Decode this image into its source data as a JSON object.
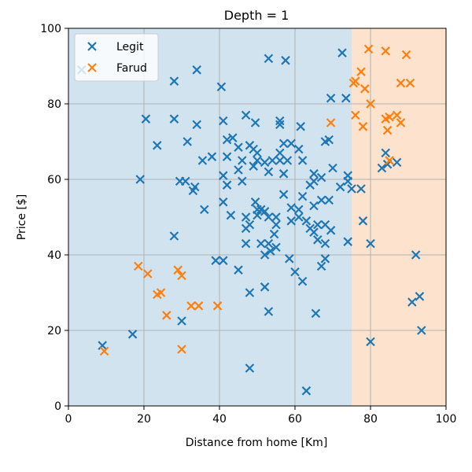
{
  "chart_data": {
    "type": "scatter",
    "title": "Depth = 1",
    "xlabel": "Distance from home [Km]",
    "ylabel": "Price [$]",
    "xlim": [
      0,
      100
    ],
    "ylim": [
      0,
      100
    ],
    "xticks": [
      0,
      20,
      40,
      60,
      80,
      100
    ],
    "yticks": [
      0,
      20,
      40,
      60,
      80,
      100
    ],
    "grid": true,
    "legend_position": "top-left",
    "marker": "x",
    "regions": [
      {
        "x_range": [
          0,
          75
        ],
        "color": "#d2e3f0"
      },
      {
        "x_range": [
          75,
          100
        ],
        "color": "#fde3cd"
      }
    ],
    "series": [
      {
        "name": "Legit",
        "color": "#1f77b4",
        "points": [
          [
            3.5,
            89
          ],
          [
            20.5,
            76
          ],
          [
            28,
            86
          ],
          [
            28,
            76
          ],
          [
            34,
            89
          ],
          [
            40.5,
            84.5
          ],
          [
            53,
            92
          ],
          [
            57.5,
            91.5
          ],
          [
            72.5,
            93.5
          ],
          [
            73.5,
            81.5
          ],
          [
            69.5,
            81.5
          ],
          [
            47,
            77
          ],
          [
            41,
            75.5
          ],
          [
            49.5,
            75
          ],
          [
            56,
            75.5
          ],
          [
            56,
            74.5
          ],
          [
            61.5,
            74
          ],
          [
            34,
            74.5
          ],
          [
            23.5,
            69
          ],
          [
            31.5,
            70
          ],
          [
            42,
            70.5
          ],
          [
            43.5,
            71
          ],
          [
            45,
            68.5
          ],
          [
            48,
            69
          ],
          [
            49,
            68
          ],
          [
            50,
            67
          ],
          [
            56,
            67
          ],
          [
            57,
            69.5
          ],
          [
            59,
            69.5
          ],
          [
            61,
            68
          ],
          [
            68,
            70
          ],
          [
            69,
            70.5
          ],
          [
            38,
            66
          ],
          [
            35.5,
            65
          ],
          [
            42,
            66
          ],
          [
            46,
            65
          ],
          [
            50,
            65
          ],
          [
            52,
            64.5
          ],
          [
            54,
            65
          ],
          [
            56,
            65
          ],
          [
            58,
            65
          ],
          [
            62,
            65
          ],
          [
            45,
            62.5
          ],
          [
            49,
            63.5
          ],
          [
            53,
            62
          ],
          [
            57,
            61.5
          ],
          [
            65,
            61.5
          ],
          [
            67,
            60.5
          ],
          [
            70,
            63
          ],
          [
            19,
            60
          ],
          [
            29.5,
            59.5
          ],
          [
            31,
            59.5
          ],
          [
            33.5,
            58
          ],
          [
            33,
            57
          ],
          [
            41,
            61
          ],
          [
            42,
            58.5
          ],
          [
            46,
            59.5
          ],
          [
            62,
            55.5
          ],
          [
            64,
            58.5
          ],
          [
            65,
            59.5
          ],
          [
            72,
            58
          ],
          [
            74,
            61
          ],
          [
            74,
            59.5
          ],
          [
            75,
            57.5
          ],
          [
            36,
            52
          ],
          [
            41,
            54
          ],
          [
            43,
            50.5
          ],
          [
            47,
            50
          ],
          [
            48,
            48
          ],
          [
            49.5,
            54
          ],
          [
            50,
            52
          ],
          [
            50,
            50.5
          ],
          [
            51,
            52
          ],
          [
            52,
            51.5
          ],
          [
            53,
            50
          ],
          [
            55,
            50
          ],
          [
            57,
            56
          ],
          [
            59,
            52.5
          ],
          [
            61,
            52
          ],
          [
            61,
            50
          ],
          [
            63,
            49
          ],
          [
            64,
            47
          ],
          [
            65,
            53
          ],
          [
            66,
            48
          ],
          [
            67,
            54.5
          ],
          [
            69,
            54.5
          ],
          [
            68,
            48
          ],
          [
            28,
            45
          ],
          [
            47,
            47
          ],
          [
            51,
            43
          ],
          [
            53,
            43
          ],
          [
            54.5,
            45.5
          ],
          [
            55,
            48
          ],
          [
            59,
            49
          ],
          [
            65,
            46
          ],
          [
            66,
            44
          ],
          [
            69.5,
            46.5
          ],
          [
            47,
            43
          ],
          [
            52,
            40
          ],
          [
            53.5,
            41
          ],
          [
            55,
            42
          ],
          [
            68,
            43
          ],
          [
            74,
            43.5
          ],
          [
            39,
            38.5
          ],
          [
            41,
            38.5
          ],
          [
            45,
            36
          ],
          [
            58.5,
            39
          ],
          [
            60,
            35.5
          ],
          [
            62,
            33
          ],
          [
            67,
            37
          ],
          [
            68,
            39
          ],
          [
            48,
            30
          ],
          [
            52,
            31.5
          ],
          [
            30,
            22.5
          ],
          [
            17,
            19
          ],
          [
            9,
            16
          ],
          [
            53,
            25
          ],
          [
            65.5,
            24.5
          ],
          [
            48,
            10
          ],
          [
            63,
            4
          ],
          [
            77.5,
            57.5
          ],
          [
            83,
            63
          ],
          [
            84,
            67
          ],
          [
            84.5,
            64
          ],
          [
            87,
            64.5
          ],
          [
            78,
            49
          ],
          [
            80,
            43
          ],
          [
            92,
            40
          ],
          [
            91,
            27.5
          ],
          [
            93,
            29
          ],
          [
            93.5,
            20
          ],
          [
            80,
            17
          ]
        ]
      },
      {
        "name": "Farud",
        "color": "#ff7f0e",
        "points": [
          [
            79.5,
            94.5
          ],
          [
            84,
            94
          ],
          [
            89.5,
            93
          ],
          [
            77.5,
            88.5
          ],
          [
            76,
            86
          ],
          [
            75.5,
            85.5
          ],
          [
            88,
            85.5
          ],
          [
            90.5,
            85.5
          ],
          [
            78.5,
            84
          ],
          [
            80,
            80
          ],
          [
            76,
            77
          ],
          [
            84,
            76
          ],
          [
            85,
            76.5
          ],
          [
            87,
            77
          ],
          [
            88,
            75
          ],
          [
            78,
            74
          ],
          [
            84.5,
            73
          ],
          [
            69.5,
            75
          ],
          [
            85,
            65
          ],
          [
            18.5,
            37
          ],
          [
            21,
            35
          ],
          [
            29,
            36
          ],
          [
            30,
            34.5
          ],
          [
            23.5,
            29.5
          ],
          [
            24.5,
            30
          ],
          [
            26,
            24
          ],
          [
            32.5,
            26.5
          ],
          [
            34.5,
            26.5
          ],
          [
            39.5,
            26.5
          ],
          [
            30,
            15
          ],
          [
            9.5,
            14.5
          ]
        ]
      }
    ]
  }
}
